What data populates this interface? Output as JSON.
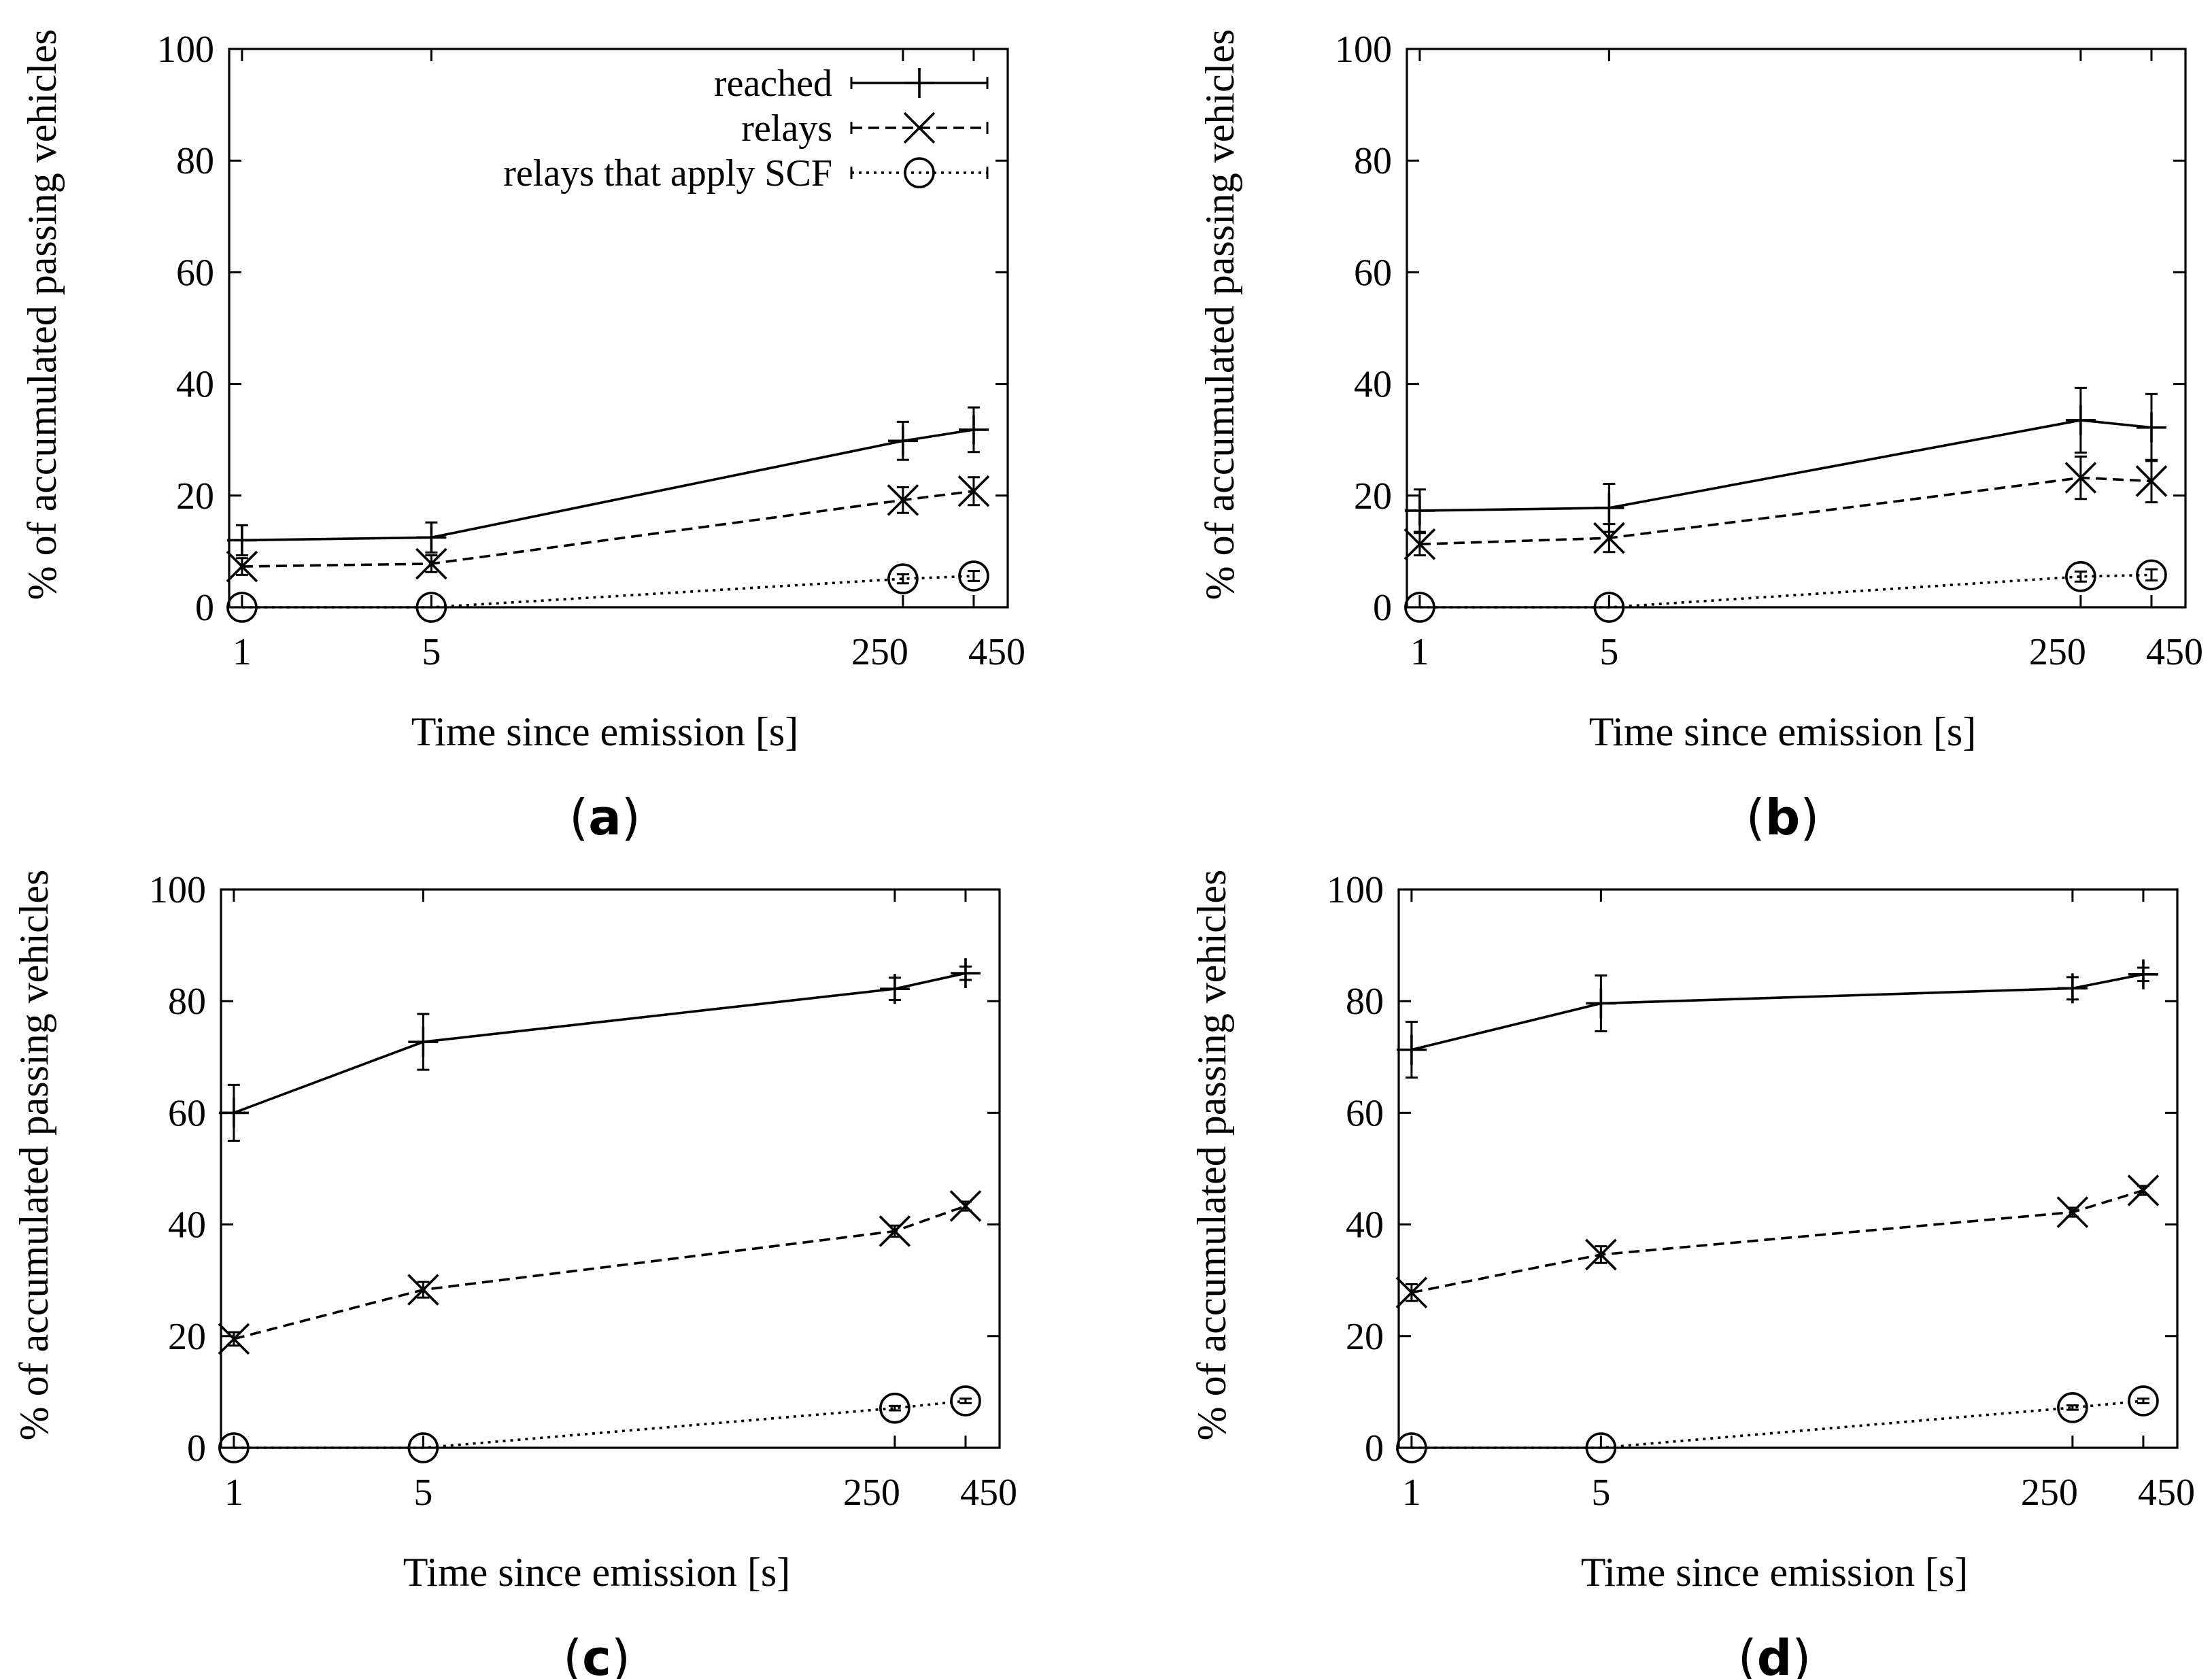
{
  "figure": {
    "y_axis_title": "% of accumulated passing vehicles",
    "x_axis_title": "Time since emission [s]",
    "x_tick_labels": [
      "1",
      "5",
      "250",
      "450"
    ],
    "y_tick_labels": [
      "0",
      "20",
      "40",
      "60",
      "80",
      "100"
    ],
    "legend": [
      {
        "label": "reached",
        "series": "reached"
      },
      {
        "label": "relays",
        "series": "relays"
      },
      {
        "label": "relays that apply SCF",
        "series": "scf"
      }
    ]
  },
  "chart_data": [
    {
      "panel": "a",
      "panel_label": {
        "open": "(",
        "letter": "a",
        "close": ")"
      },
      "type": "line",
      "xlabel": "Time since emission [s]",
      "ylabel": "% of accumulated passing vehicles",
      "x": [
        1,
        5,
        250,
        450
      ],
      "ylim": [
        0,
        100
      ],
      "legend_position": "top-right",
      "series": [
        {
          "name": "reached",
          "marker": "plus",
          "dash": "solid",
          "values": [
            12,
            12.5,
            29.8,
            31.8
          ],
          "err": [
            2.7,
            2.7,
            3.4,
            4
          ]
        },
        {
          "name": "relays",
          "marker": "x",
          "dash": "dashed",
          "values": [
            7.3,
            7.8,
            19.2,
            20.8
          ],
          "err": [
            1.5,
            1.5,
            2.3,
            2.5
          ]
        },
        {
          "name": "relays that apply SCF",
          "marker": "circle",
          "dash": "dotted",
          "values": [
            0,
            0,
            5.1,
            5.6
          ],
          "err": [
            0,
            0,
            0.8,
            0.9
          ]
        }
      ]
    },
    {
      "panel": "b",
      "panel_label": {
        "open": "(",
        "letter": "b",
        "close": ")"
      },
      "type": "line",
      "xlabel": "Time since emission [s]",
      "ylabel": "% of accumulated passing vehicles",
      "x": [
        1,
        5,
        250,
        450
      ],
      "ylim": [
        0,
        100
      ],
      "series": [
        {
          "name": "reached",
          "marker": "plus",
          "dash": "solid",
          "values": [
            17.3,
            17.8,
            33.5,
            32.2
          ],
          "err": [
            3.8,
            4.3,
            5.8,
            6
          ]
        },
        {
          "name": "relays",
          "marker": "x",
          "dash": "dashed",
          "values": [
            11.3,
            12.4,
            23.2,
            22.6
          ],
          "err": [
            2,
            2.5,
            3.8,
            3.8
          ]
        },
        {
          "name": "relays that apply SCF",
          "marker": "circle",
          "dash": "dotted",
          "values": [
            0,
            0,
            5.5,
            5.8
          ],
          "err": [
            0,
            0,
            0.9,
            1
          ]
        }
      ]
    },
    {
      "panel": "c",
      "panel_label": {
        "open": "(",
        "letter": "c",
        "close": ")"
      },
      "type": "line",
      "xlabel": "Time since emission [s]",
      "ylabel": "% of accumulated passing vehicles",
      "x": [
        1,
        5,
        250,
        450
      ],
      "ylim": [
        0,
        100
      ],
      "series": [
        {
          "name": "reached",
          "marker": "plus",
          "dash": "solid",
          "values": [
            60,
            72.7,
            82.2,
            85
          ],
          "err": [
            5,
            5,
            2,
            1.2
          ]
        },
        {
          "name": "relays",
          "marker": "x",
          "dash": "dashed",
          "values": [
            19.5,
            28.3,
            38.8,
            43.3
          ],
          "err": [
            1.2,
            1.4,
            1,
            0.8
          ]
        },
        {
          "name": "relays that apply SCF",
          "marker": "circle",
          "dash": "dotted",
          "values": [
            0,
            0,
            7.1,
            8.4
          ],
          "err": [
            0,
            0,
            0.4,
            0.4
          ]
        }
      ]
    },
    {
      "panel": "d",
      "panel_label": {
        "open": "(",
        "letter": "d",
        "close": ")"
      },
      "type": "line",
      "xlabel": "Time since emission [s]",
      "ylabel": "% of accumulated passing vehicles",
      "x": [
        1,
        5,
        250,
        450
      ],
      "ylim": [
        0,
        100
      ],
      "series": [
        {
          "name": "reached",
          "marker": "plus",
          "dash": "solid",
          "values": [
            71.3,
            79.6,
            82.3,
            84.8
          ],
          "err": [
            5,
            5,
            2,
            1.2
          ]
        },
        {
          "name": "relays",
          "marker": "x",
          "dash": "dashed",
          "values": [
            27.8,
            34.6,
            42.2,
            46.1
          ],
          "err": [
            1.5,
            1.5,
            0.8,
            0.8
          ]
        },
        {
          "name": "relays that apply SCF",
          "marker": "circle",
          "dash": "dotted",
          "values": [
            0,
            0,
            7.2,
            8.4
          ],
          "err": [
            0,
            0,
            0.4,
            0.4
          ]
        }
      ]
    }
  ]
}
